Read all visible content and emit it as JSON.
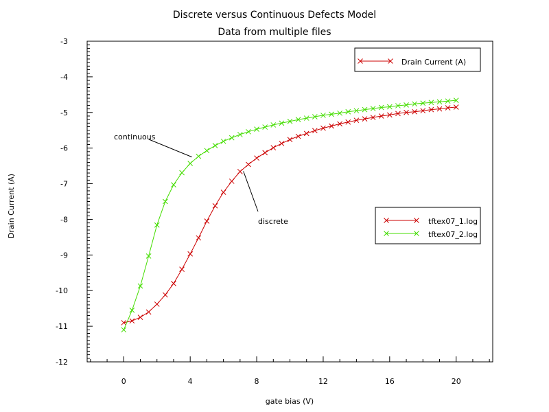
{
  "title": "Discrete versus Continuous Defects Model",
  "subtitle": "Data from multiple files",
  "chart_data": {
    "type": "line",
    "xlabel": "gate bias (V)",
    "ylabel": "Drain Current (A)",
    "xlim": [
      -2.2,
      22.2
    ],
    "ylim": [
      -12,
      -3
    ],
    "x_ticks": [
      0,
      4,
      8,
      12,
      16,
      20
    ],
    "x_tick_labels": [
      "0",
      "4",
      "8",
      "12",
      "16",
      "20"
    ],
    "y_ticks": [
      -3,
      -4,
      -5,
      -6,
      -7,
      -8,
      -9,
      -10,
      -11,
      -12
    ],
    "y_tick_labels": [
      "-3",
      "-4",
      "-5",
      "-6",
      "-7",
      "-8",
      "-9",
      "-10",
      "-11",
      "-12"
    ],
    "grid": false,
    "legend_top": {
      "position": "top-right",
      "entry": "Drain Current (A)",
      "color": "#cc0000"
    },
    "legend": {
      "position": "right",
      "entries": [
        "tftex07_1.log",
        "tftex07_2.log"
      ]
    },
    "annotations": [
      {
        "text": "continuous",
        "target_x": 4.1,
        "target_y": -6.25
      },
      {
        "text": "discrete",
        "target_x": 7.2,
        "target_y": -6.65
      }
    ],
    "series": [
      {
        "name": "tftex07_1.log",
        "color": "#cc0000",
        "x": [
          0,
          0.5,
          1,
          1.5,
          2,
          2.5,
          3,
          3.5,
          4,
          4.5,
          5,
          5.5,
          6,
          6.5,
          7,
          7.5,
          8,
          8.5,
          9,
          9.5,
          10,
          10.5,
          11,
          11.5,
          12,
          12.5,
          13,
          13.5,
          14,
          14.5,
          15,
          15.5,
          16,
          16.5,
          17,
          17.5,
          18,
          18.5,
          19,
          19.5,
          20
        ],
        "y": [
          -10.9,
          -10.85,
          -10.75,
          -10.6,
          -10.38,
          -10.12,
          -9.8,
          -9.4,
          -8.97,
          -8.52,
          -8.05,
          -7.62,
          -7.24,
          -6.93,
          -6.66,
          -6.46,
          -6.28,
          -6.13,
          -5.99,
          -5.87,
          -5.76,
          -5.67,
          -5.59,
          -5.51,
          -5.44,
          -5.38,
          -5.32,
          -5.27,
          -5.22,
          -5.18,
          -5.14,
          -5.1,
          -5.07,
          -5.03,
          -5.0,
          -4.98,
          -4.95,
          -4.92,
          -4.9,
          -4.87,
          -4.85
        ]
      },
      {
        "name": "tftex07_2.log",
        "color": "#44dd00",
        "x": [
          0,
          0.5,
          1,
          1.5,
          2,
          2.5,
          3,
          3.5,
          4,
          4.5,
          5,
          5.5,
          6,
          6.5,
          7,
          7.5,
          8,
          8.5,
          9,
          9.5,
          10,
          10.5,
          11,
          11.5,
          12,
          12.5,
          13,
          13.5,
          14,
          14.5,
          15,
          15.5,
          16,
          16.5,
          17,
          17.5,
          18,
          18.5,
          19,
          19.5,
          20
        ],
        "y": [
          -11.1,
          -10.55,
          -9.87,
          -9.03,
          -8.16,
          -7.5,
          -7.03,
          -6.69,
          -6.43,
          -6.23,
          -6.07,
          -5.93,
          -5.81,
          -5.71,
          -5.62,
          -5.54,
          -5.47,
          -5.41,
          -5.35,
          -5.3,
          -5.25,
          -5.2,
          -5.16,
          -5.12,
          -5.08,
          -5.05,
          -5.02,
          -4.98,
          -4.95,
          -4.92,
          -4.89,
          -4.86,
          -4.84,
          -4.81,
          -4.79,
          -4.76,
          -4.74,
          -4.72,
          -4.7,
          -4.68,
          -4.66
        ]
      }
    ]
  }
}
